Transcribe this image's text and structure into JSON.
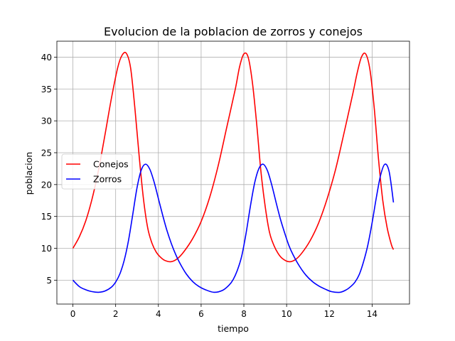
{
  "chart_data": {
    "type": "line",
    "title": "Evolucion de la poblacion de zorros y conejos",
    "xlabel": "tiempo",
    "ylabel": "poblacion",
    "xlim": [
      -0.75,
      15.75
    ],
    "ylim": [
      1.25,
      42.5
    ],
    "xticks": [
      0,
      2,
      4,
      6,
      8,
      10,
      12,
      14
    ],
    "yticks": [
      5,
      10,
      15,
      20,
      25,
      30,
      35,
      40
    ],
    "grid": true,
    "legend_position": "center-left",
    "series": [
      {
        "name": "Conejos",
        "color": "#ff0000",
        "x": [
          0,
          0.3,
          0.6,
          0.9,
          1.2,
          1.5,
          1.8,
          2.1,
          2.3,
          2.5,
          2.7,
          2.9,
          3.1,
          3.3,
          3.5,
          3.7,
          3.9,
          4.1,
          4.3,
          4.6,
          4.9,
          5.2,
          5.6,
          6.0,
          6.4,
          6.8,
          7.2,
          7.6,
          7.8,
          8.0,
          8.2,
          8.4,
          8.6,
          8.8,
          9.0,
          9.2,
          9.4,
          9.6,
          9.8,
          10.1,
          10.4,
          10.7,
          11.1,
          11.5,
          11.9,
          12.3,
          12.7,
          13.1,
          13.3,
          13.5,
          13.7,
          13.9,
          14.1,
          14.3,
          14.5,
          14.7,
          14.9,
          15.0
        ],
        "y": [
          10.0,
          11.8,
          14.3,
          17.8,
          22.3,
          27.8,
          33.5,
          38.4,
          40.3,
          40.6,
          38.3,
          32.0,
          24.5,
          17.8,
          13.2,
          10.8,
          9.4,
          8.6,
          8.1,
          7.9,
          8.4,
          9.5,
          11.5,
          14.2,
          18.0,
          23.0,
          29.0,
          35.0,
          38.5,
          40.5,
          40.0,
          36.0,
          29.5,
          22.0,
          16.5,
          12.5,
          10.5,
          9.2,
          8.4,
          7.9,
          8.2,
          9.2,
          11.2,
          14.0,
          17.8,
          22.5,
          28.3,
          34.3,
          37.5,
          40.0,
          40.5,
          38.0,
          32.0,
          24.0,
          17.5,
          13.3,
          10.6,
          9.8
        ]
      },
      {
        "name": "Zorros",
        "color": "#0000ff",
        "x": [
          0,
          0.3,
          0.6,
          0.9,
          1.2,
          1.5,
          1.8,
          2.0,
          2.2,
          2.4,
          2.6,
          2.8,
          3.0,
          3.2,
          3.4,
          3.6,
          3.8,
          4.0,
          4.2,
          4.4,
          4.6,
          4.8,
          5.0,
          5.3,
          5.6,
          5.9,
          6.2,
          6.6,
          7.0,
          7.3,
          7.5,
          7.7,
          7.9,
          8.1,
          8.3,
          8.5,
          8.7,
          8.9,
          9.1,
          9.3,
          9.5,
          9.7,
          9.9,
          10.1,
          10.3,
          10.6,
          10.9,
          11.2,
          11.5,
          11.8,
          12.1,
          12.5,
          12.8,
          13.0,
          13.2,
          13.4,
          13.6,
          13.8,
          14.0,
          14.2,
          14.4,
          14.6,
          14.8,
          15.0
        ],
        "y": [
          5.0,
          4.0,
          3.5,
          3.2,
          3.1,
          3.3,
          3.9,
          4.7,
          6.0,
          8.1,
          11.2,
          15.3,
          19.5,
          22.3,
          23.2,
          22.4,
          20.4,
          17.8,
          15.2,
          12.8,
          10.8,
          9.1,
          7.7,
          6.0,
          4.8,
          4.0,
          3.5,
          3.1,
          3.4,
          4.2,
          5.1,
          6.6,
          8.8,
          12.3,
          16.5,
          20.2,
          22.5,
          23.2,
          22.2,
          20.0,
          17.3,
          14.7,
          12.5,
          10.5,
          9.0,
          7.2,
          5.8,
          4.8,
          4.1,
          3.6,
          3.2,
          3.1,
          3.5,
          4.0,
          4.7,
          5.9,
          7.9,
          10.5,
          14.0,
          18.0,
          21.5,
          23.2,
          22.0,
          17.2
        ]
      }
    ]
  }
}
